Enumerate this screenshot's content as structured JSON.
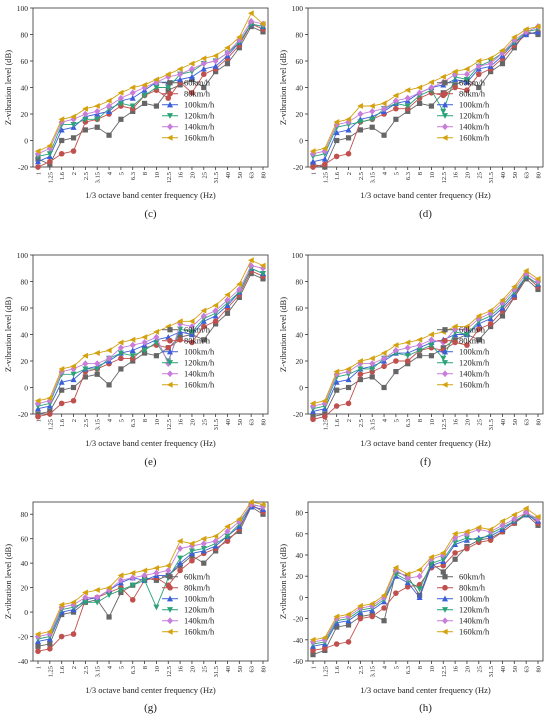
{
  "figure": {
    "series_names": [
      "60km/h",
      "80km/h",
      "100km/h",
      "120km/h",
      "140km/h",
      "160km/h"
    ],
    "series_colors": [
      "#666666",
      "#c0504d",
      "#3b5fd9",
      "#2aa376",
      "#c77dd9",
      "#d4a20f"
    ],
    "series_markers": [
      "square",
      "circle",
      "triangle-up",
      "triangle-down",
      "diamond",
      "triangle-left"
    ],
    "xlabel": "1/3 octave band center frequency (Hz)",
    "ylabel": "Z-vibration level (dB)",
    "x_ticks": [
      "1",
      "1.25",
      "1.6",
      "2",
      "2.5",
      "3.15",
      "4",
      "5",
      "6.3",
      "8",
      "10",
      "12.5",
      "16",
      "20",
      "25",
      "31.5",
      "40",
      "50",
      "63",
      "80"
    ]
  },
  "chart_data": [
    {
      "type": "line",
      "panel_label": "(c)",
      "ylim": [
        -20,
        100
      ],
      "y_ticks": [
        -20,
        0,
        20,
        40,
        60,
        80,
        100
      ],
      "series": [
        {
          "name": "60km/h",
          "values": [
            -14,
            -18,
            0,
            2,
            8,
            10,
            4,
            16,
            22,
            28,
            26,
            38,
            42,
            46,
            40,
            52,
            58,
            70,
            86,
            82
          ]
        },
        {
          "name": "80km/h",
          "values": [
            -20,
            -16,
            -10,
            -8,
            14,
            16,
            20,
            26,
            24,
            34,
            38,
            32,
            44,
            36,
            50,
            54,
            62,
            72,
            88,
            84
          ]
        },
        {
          "name": "100km/h",
          "values": [
            -16,
            -12,
            8,
            10,
            18,
            20,
            22,
            30,
            32,
            38,
            44,
            44,
            46,
            48,
            54,
            56,
            64,
            74,
            88,
            86
          ]
        },
        {
          "name": "120km/h",
          "values": [
            -12,
            -10,
            12,
            12,
            16,
            16,
            24,
            28,
            26,
            34,
            40,
            40,
            50,
            52,
            58,
            60,
            66,
            74,
            88,
            86
          ]
        },
        {
          "name": "140km/h",
          "values": [
            -10,
            -6,
            14,
            16,
            20,
            22,
            26,
            32,
            36,
            40,
            44,
            48,
            50,
            54,
            58,
            60,
            66,
            76,
            90,
            88
          ]
        },
        {
          "name": "160km/h",
          "values": [
            -8,
            -4,
            16,
            18,
            24,
            26,
            30,
            36,
            40,
            42,
            46,
            50,
            54,
            58,
            62,
            64,
            70,
            78,
            96,
            88
          ]
        }
      ]
    },
    {
      "type": "line",
      "panel_label": "(d)",
      "ylim": [
        -20,
        100
      ],
      "y_ticks": [
        -20,
        0,
        20,
        40,
        60,
        80,
        100
      ],
      "series": [
        {
          "name": "60km/h",
          "values": [
            -18,
            -20,
            0,
            2,
            8,
            10,
            4,
            16,
            22,
            28,
            26,
            36,
            42,
            46,
            40,
            52,
            58,
            70,
            82,
            80
          ]
        },
        {
          "name": "80km/h",
          "values": [
            -20,
            -18,
            -12,
            -10,
            14,
            16,
            20,
            24,
            24,
            32,
            36,
            34,
            40,
            38,
            50,
            54,
            62,
            72,
            80,
            82
          ]
        },
        {
          "name": "100km/h",
          "values": [
            -16,
            -14,
            6,
            8,
            16,
            18,
            22,
            28,
            30,
            36,
            40,
            42,
            46,
            44,
            54,
            56,
            64,
            74,
            80,
            82
          ]
        },
        {
          "name": "120km/h",
          "values": [
            -12,
            -10,
            10,
            12,
            14,
            16,
            24,
            28,
            26,
            34,
            38,
            22,
            48,
            46,
            56,
            60,
            66,
            74,
            82,
            84
          ]
        },
        {
          "name": "140km/h",
          "values": [
            -10,
            -8,
            12,
            14,
            20,
            22,
            24,
            30,
            32,
            36,
            40,
            44,
            50,
            50,
            56,
            58,
            66,
            76,
            82,
            86
          ]
        },
        {
          "name": "160km/h",
          "values": [
            -8,
            -6,
            14,
            16,
            26,
            26,
            28,
            34,
            38,
            40,
            44,
            48,
            52,
            54,
            60,
            62,
            68,
            78,
            84,
            86
          ]
        }
      ]
    },
    {
      "type": "line",
      "panel_label": "(e)",
      "ylim": [
        -20,
        100
      ],
      "y_ticks": [
        -20,
        0,
        20,
        40,
        60,
        80,
        100
      ],
      "series": [
        {
          "name": "60km/h",
          "values": [
            -20,
            -18,
            -2,
            0,
            8,
            10,
            2,
            14,
            20,
            26,
            24,
            30,
            38,
            40,
            36,
            48,
            56,
            68,
            86,
            82
          ]
        },
        {
          "name": "80km/h",
          "values": [
            -22,
            -20,
            -12,
            -10,
            12,
            14,
            18,
            22,
            22,
            30,
            32,
            30,
            36,
            34,
            46,
            50,
            60,
            70,
            88,
            84
          ]
        },
        {
          "name": "100km/h",
          "values": [
            -16,
            -14,
            4,
            6,
            14,
            16,
            20,
            26,
            28,
            32,
            36,
            38,
            42,
            40,
            50,
            54,
            62,
            72,
            90,
            86
          ]
        },
        {
          "name": "120km/h",
          "values": [
            -14,
            -12,
            10,
            10,
            14,
            14,
            22,
            26,
            24,
            28,
            34,
            20,
            44,
            42,
            52,
            56,
            64,
            72,
            90,
            86
          ]
        },
        {
          "name": "140km/h",
          "values": [
            -12,
            -10,
            12,
            14,
            18,
            18,
            22,
            30,
            32,
            34,
            38,
            18,
            48,
            46,
            54,
            58,
            66,
            74,
            92,
            90
          ]
        },
        {
          "name": "160km/h",
          "values": [
            -10,
            -8,
            14,
            16,
            24,
            26,
            28,
            34,
            36,
            38,
            42,
            46,
            50,
            50,
            58,
            62,
            70,
            78,
            96,
            92
          ]
        }
      ]
    },
    {
      "type": "line",
      "panel_label": "(f)",
      "ylim": [
        -20,
        100
      ],
      "y_ticks": [
        -20,
        0,
        20,
        40,
        60,
        80,
        100
      ],
      "series": [
        {
          "name": "60km/h",
          "values": [
            -22,
            -20,
            -2,
            0,
            6,
            8,
            0,
            12,
            18,
            24,
            24,
            30,
            36,
            40,
            36,
            46,
            54,
            68,
            82,
            74
          ]
        },
        {
          "name": "80km/h",
          "values": [
            -24,
            -22,
            -14,
            -12,
            10,
            12,
            16,
            20,
            20,
            28,
            30,
            28,
            34,
            32,
            44,
            48,
            58,
            68,
            84,
            76
          ]
        },
        {
          "name": "100km/h",
          "values": [
            -18,
            -16,
            4,
            6,
            14,
            16,
            20,
            26,
            26,
            30,
            34,
            36,
            40,
            40,
            48,
            52,
            60,
            70,
            84,
            78
          ]
        },
        {
          "name": "120km/h",
          "values": [
            -16,
            -14,
            8,
            10,
            14,
            14,
            22,
            26,
            24,
            28,
            32,
            22,
            42,
            40,
            50,
            54,
            62,
            72,
            84,
            78
          ]
        },
        {
          "name": "140km/h",
          "values": [
            -14,
            -12,
            10,
            12,
            18,
            18,
            22,
            28,
            30,
            32,
            36,
            34,
            44,
            44,
            52,
            56,
            64,
            74,
            86,
            80
          ]
        },
        {
          "name": "160km/h",
          "values": [
            -12,
            -10,
            12,
            14,
            20,
            22,
            26,
            32,
            34,
            36,
            40,
            42,
            46,
            46,
            54,
            58,
            66,
            76,
            88,
            82
          ]
        }
      ]
    },
    {
      "type": "line",
      "panel_label": "(g)",
      "ylim": [
        -40,
        90
      ],
      "y_ticks": [
        -40,
        -20,
        0,
        20,
        40,
        60,
        80
      ],
      "series": [
        {
          "name": "60km/h",
          "values": [
            -28,
            -26,
            -2,
            0,
            8,
            10,
            -4,
            16,
            22,
            28,
            26,
            30,
            38,
            46,
            40,
            50,
            60,
            66,
            86,
            80
          ]
        },
        {
          "name": "80km/h",
          "values": [
            -32,
            -30,
            -20,
            -18,
            10,
            12,
            16,
            20,
            10,
            26,
            28,
            22,
            34,
            42,
            48,
            52,
            58,
            68,
            88,
            82
          ]
        },
        {
          "name": "100km/h",
          "values": [
            -24,
            -22,
            0,
            2,
            10,
            12,
            18,
            24,
            28,
            26,
            30,
            30,
            40,
            48,
            50,
            54,
            62,
            70,
            86,
            84
          ]
        },
        {
          "name": "120km/h",
          "values": [
            -22,
            -20,
            2,
            4,
            8,
            8,
            14,
            18,
            22,
            26,
            4,
            28,
            44,
            50,
            52,
            56,
            62,
            72,
            88,
            86
          ]
        },
        {
          "name": "140km/h",
          "values": [
            -20,
            -18,
            4,
            6,
            12,
            12,
            18,
            26,
            28,
            30,
            32,
            34,
            52,
            54,
            56,
            58,
            66,
            74,
            88,
            86
          ]
        },
        {
          "name": "160km/h",
          "values": [
            -18,
            -16,
            6,
            8,
            16,
            18,
            20,
            30,
            32,
            34,
            36,
            38,
            58,
            56,
            60,
            62,
            70,
            76,
            90,
            88
          ]
        }
      ]
    },
    {
      "type": "line",
      "panel_label": "(h)",
      "ylim": [
        -60,
        90
      ],
      "y_ticks": [
        -60,
        -40,
        -20,
        0,
        20,
        40,
        60,
        80
      ],
      "series": [
        {
          "name": "60km/h",
          "values": [
            -54,
            -50,
            -28,
            -26,
            -18,
            -16,
            -22,
            24,
            20,
            2,
            32,
            24,
            36,
            48,
            54,
            56,
            62,
            70,
            78,
            68
          ]
        },
        {
          "name": "80km/h",
          "values": [
            -50,
            -48,
            -44,
            -42,
            -20,
            -18,
            -10,
            4,
            10,
            12,
            28,
            30,
            42,
            46,
            52,
            54,
            62,
            70,
            80,
            70
          ]
        },
        {
          "name": "100km/h",
          "values": [
            -46,
            -44,
            -24,
            -22,
            -14,
            -12,
            -4,
            20,
            14,
            0,
            30,
            34,
            50,
            54,
            56,
            58,
            64,
            72,
            78,
            72
          ]
        },
        {
          "name": "120km/h",
          "values": [
            -44,
            -42,
            -22,
            -20,
            -12,
            -10,
            -2,
            22,
            16,
            8,
            32,
            36,
            52,
            56,
            54,
            60,
            66,
            72,
            78,
            74
          ]
        },
        {
          "name": "140km/h",
          "values": [
            -42,
            -40,
            -20,
            -18,
            -10,
            -8,
            0,
            26,
            18,
            20,
            36,
            40,
            56,
            60,
            64,
            62,
            68,
            74,
            80,
            74
          ]
        },
        {
          "name": "160km/h",
          "values": [
            -40,
            -38,
            -18,
            -16,
            -8,
            -6,
            2,
            28,
            22,
            26,
            38,
            42,
            60,
            62,
            66,
            64,
            72,
            78,
            84,
            76
          ]
        }
      ]
    }
  ]
}
